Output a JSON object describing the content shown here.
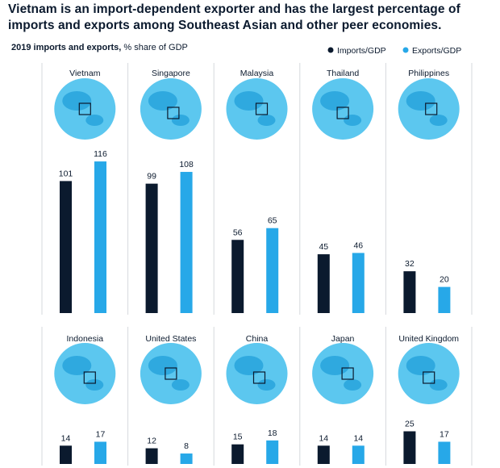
{
  "chart_data": {
    "type": "bar",
    "title": "Vietnam is an import-dependent exporter and has the largest percentage of imports and exports among Southeast Asian and other peer economies.",
    "subtitle": "2019 imports and exports,",
    "unit_note": "% share of GDP",
    "categories": [
      "Vietnam",
      "Singapore",
      "Malaysia",
      "Thailand",
      "Philippines",
      "Indonesia",
      "United States",
      "China",
      "Japan",
      "United Kingdom"
    ],
    "series": [
      {
        "name": "Imports/GDP",
        "color": "#0b1a2e",
        "values": [
          101,
          99,
          56,
          45,
          32,
          14,
          12,
          15,
          14,
          25
        ]
      },
      {
        "name": "Exports/GDP",
        "color": "#27a8e8",
        "values": [
          116,
          108,
          65,
          46,
          20,
          17,
          8,
          18,
          14,
          17
        ]
      }
    ]
  }
}
